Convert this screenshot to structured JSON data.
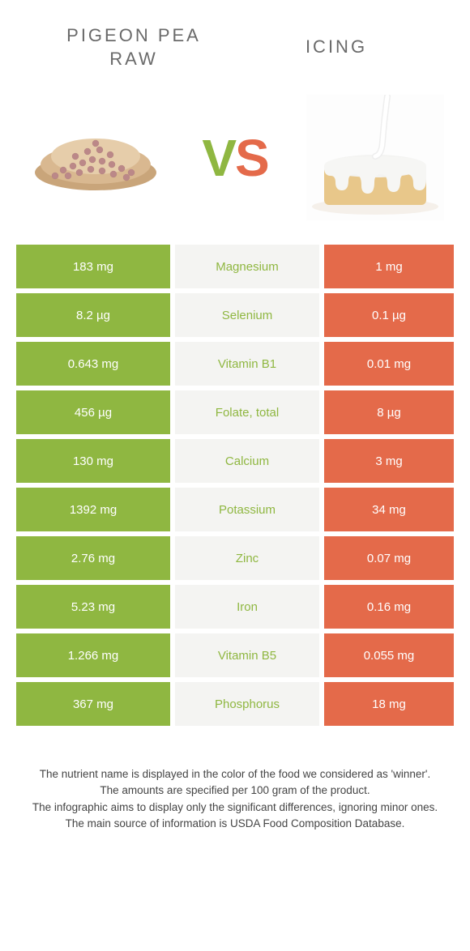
{
  "header": {
    "left_title": "PIGEON PEA\nRAW",
    "right_title": "ICING"
  },
  "vs": {
    "v": "V",
    "s": "S"
  },
  "colors": {
    "left_bg": "#8fb741",
    "right_bg": "#e46a4a",
    "mid_bg": "#f4f4f2",
    "mid_text_left_winner": "#8fb741",
    "mid_text_right_winner": "#e46a4a",
    "row_gap_color": "#ffffff"
  },
  "rows": [
    {
      "left": "183 mg",
      "label": "Magnesium",
      "right": "1 mg",
      "winner": "left"
    },
    {
      "left": "8.2 µg",
      "label": "Selenium",
      "right": "0.1 µg",
      "winner": "left"
    },
    {
      "left": "0.643 mg",
      "label": "Vitamin B1",
      "right": "0.01 mg",
      "winner": "left"
    },
    {
      "left": "456 µg",
      "label": "Folate, total",
      "right": "8 µg",
      "winner": "left"
    },
    {
      "left": "130 mg",
      "label": "Calcium",
      "right": "3 mg",
      "winner": "left"
    },
    {
      "left": "1392 mg",
      "label": "Potassium",
      "right": "34 mg",
      "winner": "left"
    },
    {
      "left": "2.76 mg",
      "label": "Zinc",
      "right": "0.07 mg",
      "winner": "left"
    },
    {
      "left": "5.23 mg",
      "label": "Iron",
      "right": "0.16 mg",
      "winner": "left"
    },
    {
      "left": "1.266 mg",
      "label": "Vitamin B5",
      "right": "0.055 mg",
      "winner": "left"
    },
    {
      "left": "367 mg",
      "label": "Phosphorus",
      "right": "18 mg",
      "winner": "left"
    }
  ],
  "footer": {
    "line1": "The nutrient name is displayed in the color of the food we considered as 'winner'.",
    "line2": "The amounts are specified per 100 gram of the product.",
    "line3": "The infographic aims to display only the significant differences, ignoring minor ones.",
    "line4": "The main source of information is USDA Food Composition Database."
  }
}
